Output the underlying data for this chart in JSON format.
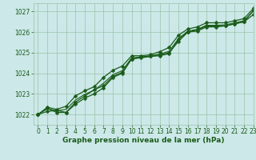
{
  "title": "Graphe pression niveau de la mer (hPa)",
  "background_color": "#cce8e8",
  "grid_color": "#99c4a8",
  "line_color": "#1a5c1a",
  "xlim": [
    -0.5,
    23
  ],
  "ylim": [
    1021.5,
    1027.4
  ],
  "yticks": [
    1022,
    1023,
    1024,
    1025,
    1026,
    1027
  ],
  "xticks": [
    0,
    1,
    2,
    3,
    4,
    5,
    6,
    7,
    8,
    9,
    10,
    11,
    12,
    13,
    14,
    15,
    16,
    17,
    18,
    19,
    20,
    21,
    22,
    23
  ],
  "series": [
    [
      1022.0,
      1022.3,
      1022.1,
      1022.1,
      1022.6,
      1022.9,
      1023.2,
      1023.4,
      1023.85,
      1024.05,
      1024.7,
      1024.75,
      1024.82,
      1024.85,
      1024.95,
      1025.65,
      1026.0,
      1026.05,
      1026.25,
      1026.25,
      1026.3,
      1026.4,
      1026.5,
      1026.85
    ],
    [
      1022.0,
      1022.15,
      1022.2,
      1022.1,
      1022.5,
      1022.8,
      1023.0,
      1023.3,
      1023.8,
      1024.0,
      1024.7,
      1024.78,
      1024.82,
      1024.9,
      1025.0,
      1025.55,
      1026.0,
      1026.1,
      1026.3,
      1026.3,
      1026.3,
      1026.4,
      1026.5,
      1027.05
    ],
    [
      1022.0,
      1022.35,
      1022.25,
      1022.4,
      1022.9,
      1023.15,
      1023.35,
      1023.8,
      1024.15,
      1024.35,
      1024.85,
      1024.85,
      1024.9,
      1025.05,
      1025.25,
      1025.85,
      1026.15,
      1026.25,
      1026.45,
      1026.45,
      1026.45,
      1026.55,
      1026.65,
      1027.15
    ],
    [
      1022.0,
      1022.28,
      1022.18,
      1022.25,
      1022.7,
      1022.98,
      1023.18,
      1023.52,
      1023.93,
      1024.13,
      1024.75,
      1024.79,
      1024.85,
      1024.93,
      1025.07,
      1025.68,
      1026.05,
      1026.13,
      1026.33,
      1026.33,
      1026.35,
      1026.45,
      1026.55,
      1027.02
    ]
  ],
  "has_markers": [
    true,
    true,
    true,
    false
  ],
  "marker_style": "D",
  "marker_size": 2.5,
  "linewidths": [
    0.9,
    0.9,
    0.9,
    0.8
  ],
  "ylabel_fontsize": 5.5,
  "xlabel_fontsize": 6.5,
  "tick_fontsize": 5.5
}
